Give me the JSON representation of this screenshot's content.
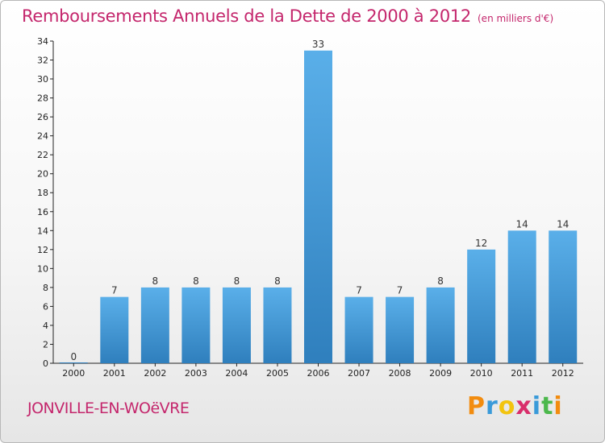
{
  "header": {
    "title": "Remboursements Annuels de la Dette de 2000 à 2012",
    "subtitle": "(en milliers d'€)"
  },
  "footer": {
    "place": "JONVILLE-EN-WOëVRE",
    "brand": "Proxiti",
    "brand_letters": [
      {
        "ch": "P",
        "color": "#f28c0f"
      },
      {
        "ch": "r",
        "color": "#3a9ad9"
      },
      {
        "ch": "o",
        "color": "#f2c40f"
      },
      {
        "ch": "x",
        "color": "#d92e6b"
      },
      {
        "ch": "i",
        "color": "#3a9ad9"
      },
      {
        "ch": "t",
        "color": "#4cb84c"
      },
      {
        "ch": "i",
        "color": "#f28c0f"
      }
    ]
  },
  "chart_data": {
    "type": "bar",
    "title": "Remboursements Annuels de la Dette de 2000 à 2012",
    "subtitle": "(en milliers d'€)",
    "categories": [
      "2000",
      "2001",
      "2002",
      "2003",
      "2004",
      "2005",
      "2006",
      "2007",
      "2008",
      "2009",
      "2010",
      "2011",
      "2012"
    ],
    "values": [
      0,
      7,
      8,
      8,
      8,
      8,
      33,
      7,
      7,
      8,
      12,
      14,
      14
    ],
    "value_labels": [
      "0",
      "7",
      "8",
      "8",
      "8",
      "8",
      "33",
      "7",
      "7",
      "8",
      "12",
      "14",
      "14"
    ],
    "ylim": [
      0,
      34
    ],
    "yticks": [
      0,
      2,
      4,
      6,
      8,
      10,
      12,
      14,
      16,
      18,
      20,
      22,
      24,
      26,
      28,
      30,
      32,
      34
    ],
    "grid": false,
    "bar_color_top": "#5aafe9",
    "bar_color_bottom": "#2f7fbd"
  }
}
